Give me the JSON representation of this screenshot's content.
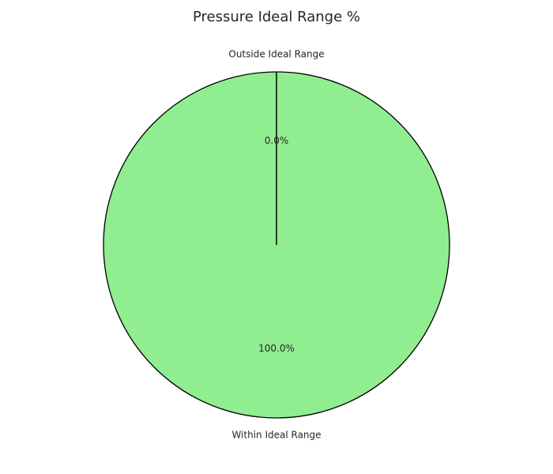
{
  "chart_data": {
    "type": "pie",
    "title": "Pressure Ideal Range %",
    "slices": [
      {
        "label": "Within Ideal Range",
        "value": 100.0,
        "pct_text": "100.0%",
        "color": "#90ee90"
      },
      {
        "label": "Outside Ideal Range",
        "value": 0.0,
        "pct_text": "0.0%",
        "color": "#ffa500"
      }
    ],
    "edge_color": "#000000",
    "start_angle": 90,
    "direction": "counterclockwise"
  }
}
